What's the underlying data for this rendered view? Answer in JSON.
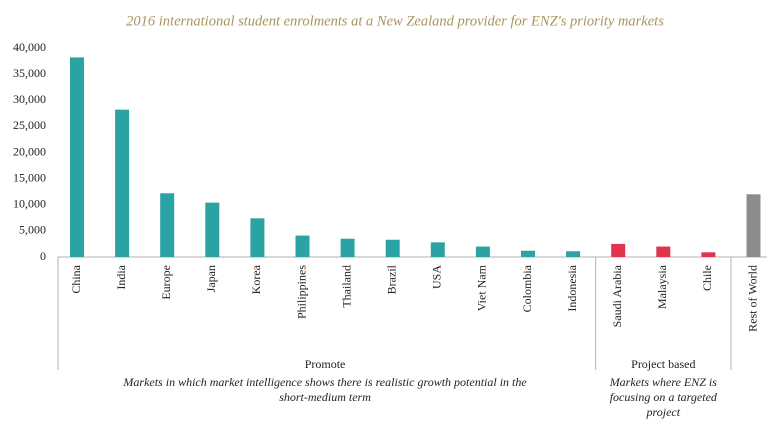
{
  "chart_data": {
    "type": "bar",
    "title": "2016 international student enrolments at a New Zealand provider for ENZ's priority markets",
    "ylim": [
      0,
      40000
    ],
    "yticks": [
      0,
      {
        "value": 5000,
        "label": "5,000"
      },
      {
        "value": 10000,
        "label": "10,000"
      },
      {
        "value": 15000,
        "label": "15,000"
      },
      {
        "value": 20000,
        "label": "20,000"
      },
      {
        "value": 25000,
        "label": "25,000"
      },
      {
        "value": 30000,
        "label": "30,000"
      },
      {
        "value": 35000,
        "label": "35,000"
      },
      {
        "value": 40000,
        "label": "40,000"
      }
    ],
    "groups": [
      {
        "label": "Promote",
        "description": [
          "Markets in which market intelligence shows there is realistic growth potential in the",
          "short-medium term"
        ],
        "color": "#2ba3a5",
        "categories": [
          "China",
          "India",
          "Europe",
          "Japan",
          "Korea",
          "Philippines",
          "Thailand",
          "Brazil",
          "USA",
          "Viet Nam",
          "Colombia",
          "Indonesia"
        ],
        "values": [
          38200,
          28200,
          12200,
          10400,
          7400,
          4100,
          3500,
          3300,
          2800,
          2000,
          1200,
          1100
        ]
      },
      {
        "label": "Project based",
        "description": [
          "Markets where ENZ is",
          "focusing on a targeted",
          "project"
        ],
        "color": "#e2334f",
        "categories": [
          "Saudi Arabia",
          "Malaysia",
          "Chile"
        ],
        "values": [
          2500,
          2000,
          900
        ]
      },
      {
        "color": "#8c8c8c",
        "categories": [
          "Rest of World"
        ],
        "values": [
          12000
        ]
      }
    ]
  }
}
